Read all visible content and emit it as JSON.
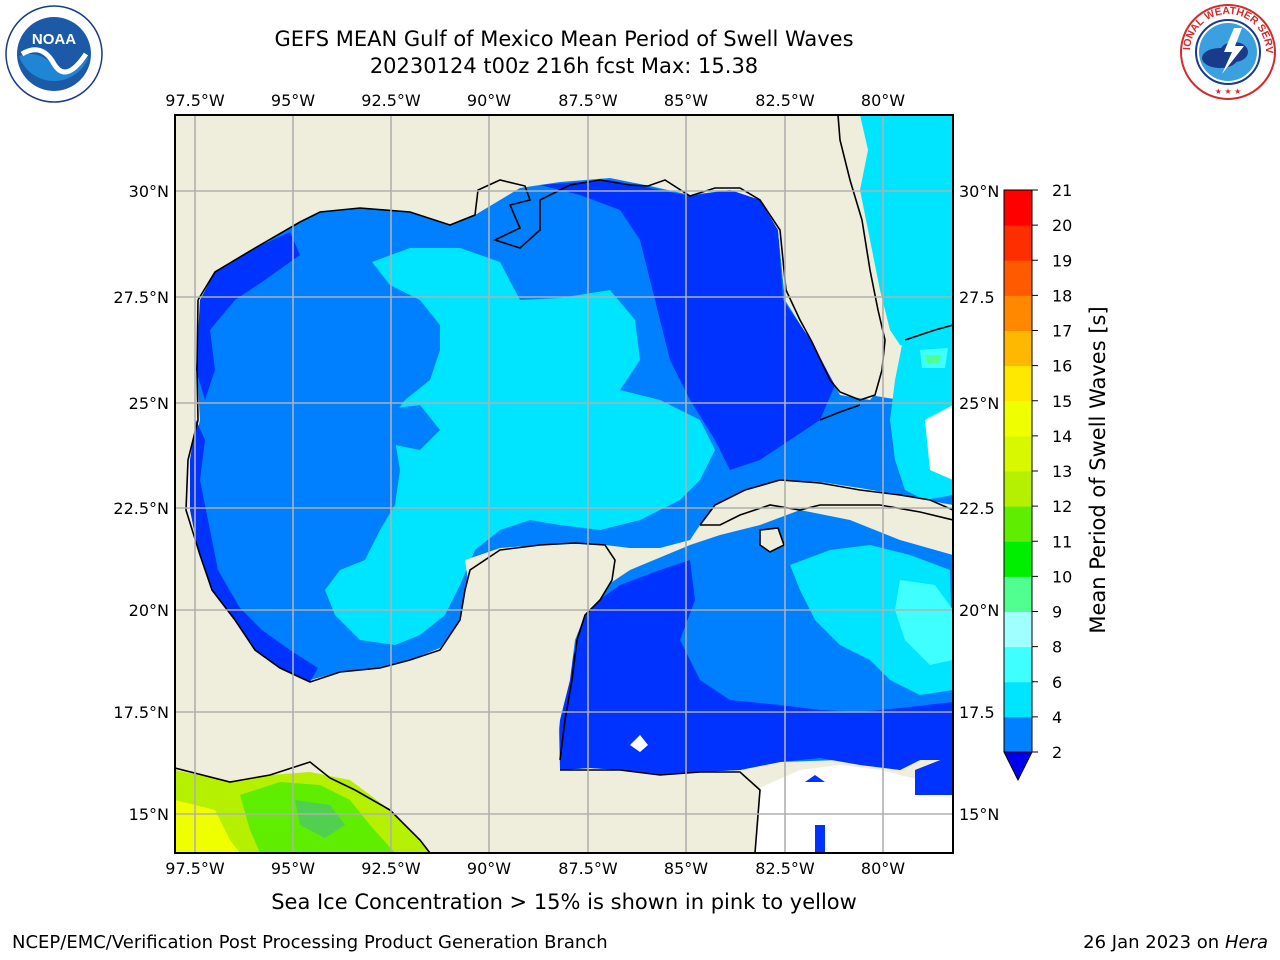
{
  "title": {
    "line1": "GEFS MEAN Gulf of Mexico Mean Period of Swell Waves",
    "line2": "20230124 t00z 216h fcst   Max: 15.38"
  },
  "logos": {
    "left": {
      "name": "noaa-logo",
      "text": "NOAA",
      "ring_text": "NATIONAL OCEANIC AND ATMOSPHERIC ADMINISTRATION · U.S. DEPARTMENT OF COMMERCE"
    },
    "right": {
      "name": "nws-logo",
      "ring_text": "NATIONAL WEATHER SERVICE"
    }
  },
  "map": {
    "lon_ticks": [
      "97.5°W",
      "95°W",
      "92.5°W",
      "90°W",
      "87.5°W",
      "85°W",
      "82.5°W",
      "80°W"
    ],
    "lat_ticks_left": [
      "30°N",
      "27.5°N",
      "25°N",
      "22.5°N",
      "20°N",
      "17.5°N",
      "15°N"
    ],
    "lat_ticks_right": [
      "30°N",
      "27.5",
      "25°N",
      "22.5",
      "20°N",
      "17.5",
      "15°N"
    ],
    "lon_range": [
      -98,
      -78.2
    ],
    "lat_range": [
      14,
      31.8
    ],
    "land_color": "#efeedd",
    "grid_color": "#b0b0b0"
  },
  "colorbar": {
    "label": "Mean Period of Swell Waves [s]",
    "ticks": [
      "2",
      "4",
      "6",
      "8",
      "9",
      "10",
      "11",
      "12",
      "13",
      "14",
      "15",
      "16",
      "17",
      "18",
      "19",
      "20",
      "21"
    ],
    "colors": [
      "#0033ff",
      "#0080ff",
      "#00e5ff",
      "#40ffff",
      "#a0ffff",
      "#50ff90",
      "#00ee00",
      "#60ee00",
      "#b4f000",
      "#d8f800",
      "#f0ff00",
      "#ffe800",
      "#ffb800",
      "#ff8800",
      "#ff5a00",
      "#ff2e00",
      "#ff0000"
    ],
    "extend_color": "#0000ee"
  },
  "footer": {
    "subtitle": "Sea Ice Concentration > 15% is shown in pink to yellow",
    "credit": "NCEP/EMC/Verification Post Processing Product Generation Branch",
    "date": "26 Jan 2023 on",
    "host": "Hera"
  }
}
